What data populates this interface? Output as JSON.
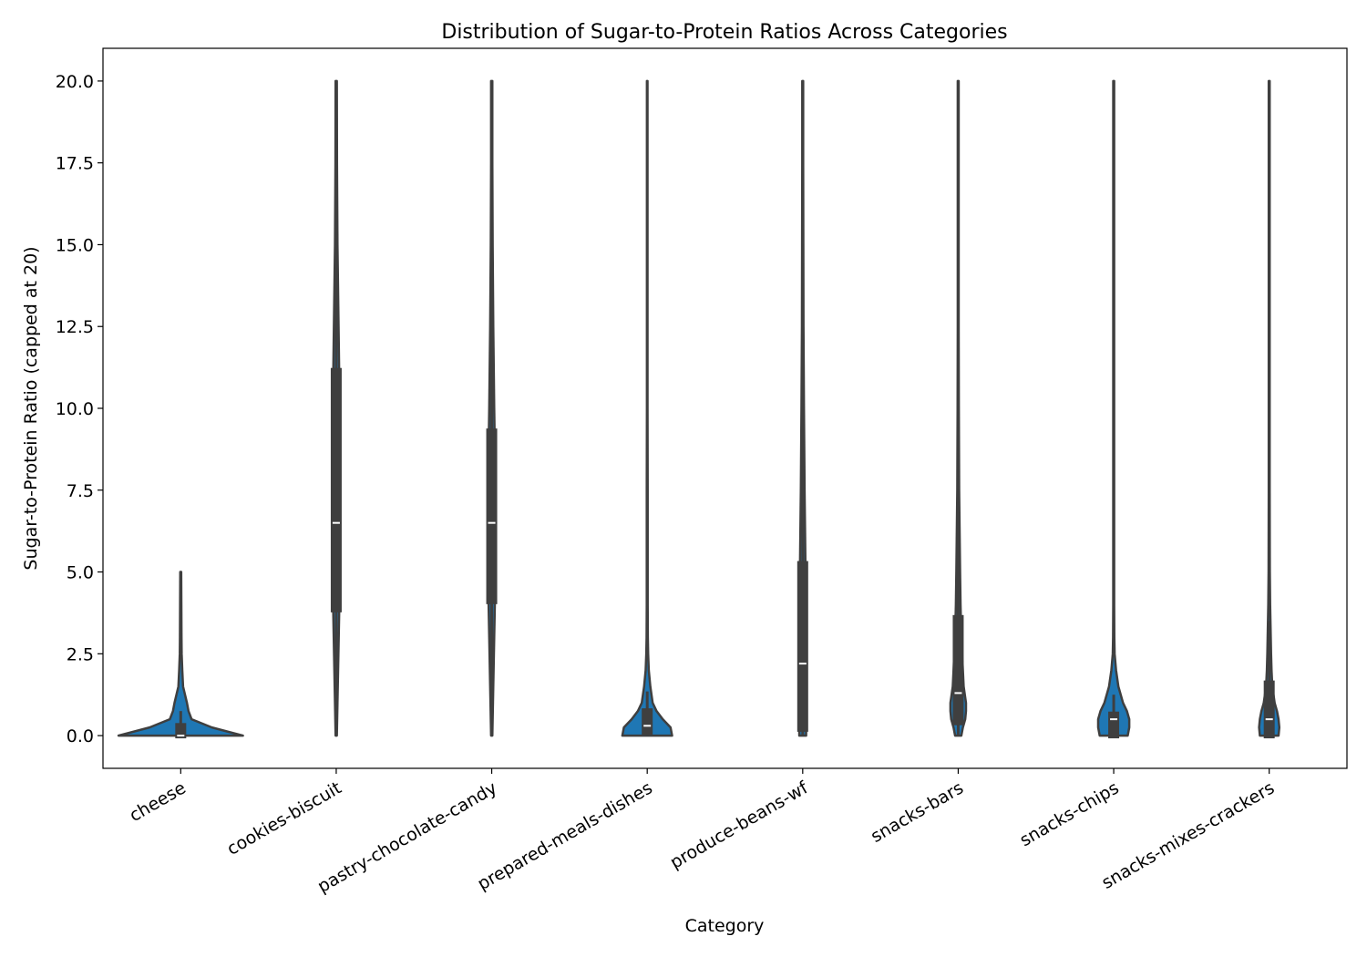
{
  "chart_data": {
    "type": "violin",
    "title": "Distribution of Sugar-to-Protein Ratios Across Categories",
    "x_label": "Category",
    "y_label": "Sugar-to-Protein Ratio (capped at 20)",
    "categories": [
      "cheese",
      "cookies-biscuit",
      "pastry-chocolate-candy",
      "prepared-meals-dishes",
      "produce-beans-wf",
      "snacks-bars",
      "snacks-chips",
      "snacks-mixes-crackers"
    ],
    "color": "#1f77b4",
    "edge_color": "#3f3f3f",
    "ylim": [
      -1.0,
      21.0
    ],
    "yticks": [
      {
        "value": 0,
        "label": "0.0"
      },
      {
        "value": 2.5,
        "label": "2.5"
      },
      {
        "value": 5,
        "label": "5.0"
      },
      {
        "value": 7.5,
        "label": "7.5"
      },
      {
        "value": 10,
        "label": "10.0"
      },
      {
        "value": 12.5,
        "label": "12.5"
      },
      {
        "value": 15,
        "label": "15.0"
      },
      {
        "value": 17.5,
        "label": "17.5"
      },
      {
        "value": 20,
        "label": "20.0"
      }
    ],
    "violin_y": [
      0,
      0.25,
      0.5,
      0.75,
      1,
      1.5,
      2,
      2.5,
      3,
      4,
      5,
      7.5,
      10,
      12.5,
      15,
      17.5,
      20
    ],
    "stats": [
      {
        "min": 0,
        "q1": 0,
        "median": 0,
        "q3": 0.3,
        "max": 0.75,
        "violin_width": [
          0.4,
          0.2,
          0.07,
          0.05,
          0.04,
          0.015,
          0.01,
          0.006,
          0.005,
          0.004,
          0.003,
          null,
          null,
          null,
          null,
          null,
          null
        ]
      },
      {
        "min": 0,
        "q1": 3.85,
        "median": 6.5,
        "q3": 11.15,
        "max": 20,
        "violin_width": [
          0.004,
          0.005,
          0.006,
          0.007,
          0.008,
          0.01,
          0.012,
          0.014,
          0.016,
          0.02,
          0.022,
          0.024,
          0.022,
          0.015,
          0.008,
          0.005,
          0.004
        ]
      },
      {
        "min": 0,
        "q1": 4.1,
        "median": 6.5,
        "q3": 9.3,
        "max": 16,
        "violin_width": [
          0.004,
          0.005,
          0.006,
          0.007,
          0.008,
          0.01,
          0.012,
          0.014,
          0.016,
          0.02,
          0.024,
          0.024,
          0.016,
          0.01,
          0.006,
          0.004,
          0.004
        ]
      },
      {
        "min": 0,
        "q1": 0.1,
        "median": 0.3,
        "q3": 0.75,
        "max": 1.35,
        "violin_width": [
          0.16,
          0.15,
          0.1,
          0.06,
          0.035,
          0.02,
          0.01,
          0.006,
          0.004,
          0.003,
          0.003,
          0.003,
          0.002,
          0.002,
          0.002,
          0.002,
          0.002
        ]
      },
      {
        "min": 0,
        "q1": 0.2,
        "median": 2.2,
        "q3": 5.25,
        "max": 12.1,
        "violin_width": [
          0.022,
          0.022,
          0.022,
          0.022,
          0.021,
          0.02,
          0.02,
          0.02,
          0.02,
          0.019,
          0.018,
          0.012,
          0.008,
          0.005,
          0.004,
          0.003,
          0.003
        ]
      },
      {
        "min": 0,
        "q1": 0.4,
        "median": 1.3,
        "q3": 3.6,
        "max": 7.5,
        "violin_width": [
          0.02,
          0.03,
          0.045,
          0.05,
          0.05,
          0.035,
          0.03,
          0.025,
          0.02,
          0.015,
          0.012,
          0.006,
          0.004,
          0.003,
          0.003,
          0.003,
          0.003
        ]
      },
      {
        "min": 0,
        "q1": 0,
        "median": 0.5,
        "q3": 0.65,
        "max": 1.25,
        "violin_width": [
          0.09,
          0.1,
          0.1,
          0.085,
          0.06,
          0.03,
          0.015,
          0.006,
          0.004,
          0.003,
          0.003,
          0.003,
          0.003,
          0.003,
          0.003,
          0.003,
          0.003
        ]
      },
      {
        "min": 0,
        "q1": 0,
        "median": 0.5,
        "q3": 1.6,
        "max": 3.5,
        "violin_width": [
          0.06,
          0.065,
          0.06,
          0.05,
          0.035,
          0.02,
          0.015,
          0.012,
          0.01,
          0.006,
          0.004,
          0.003,
          0.003,
          0.003,
          0.003,
          0.003,
          0.003
        ]
      }
    ]
  }
}
